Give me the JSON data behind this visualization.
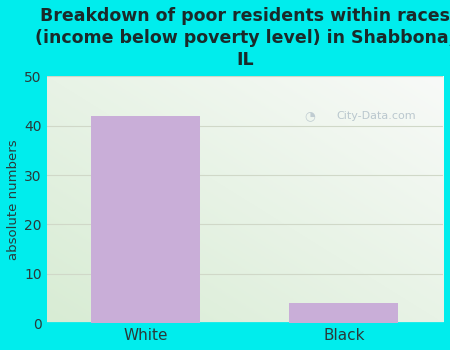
{
  "categories": [
    "White",
    "Black"
  ],
  "values": [
    42,
    4
  ],
  "bar_color": "#c9aed8",
  "background_color": "#00eded",
  "plot_bg_left": "#d8ecd4",
  "plot_bg_right": "#f8faf8",
  "title": "Breakdown of poor residents within races\n(income below poverty level) in Shabbona,\nIL",
  "ylabel": "absolute numbers",
  "ylim": [
    0,
    50
  ],
  "yticks": [
    0,
    10,
    20,
    30,
    40,
    50
  ],
  "title_color": "#1a2a2a",
  "title_fontsize": 12.5,
  "tick_label_color": "#2a3a3a",
  "ylabel_color": "#2a3a3a",
  "grid_color": "#d0d8c8",
  "watermark_text": "City-Data.com",
  "watermark_color": "#b0bfc8",
  "bar_width": 0.55
}
